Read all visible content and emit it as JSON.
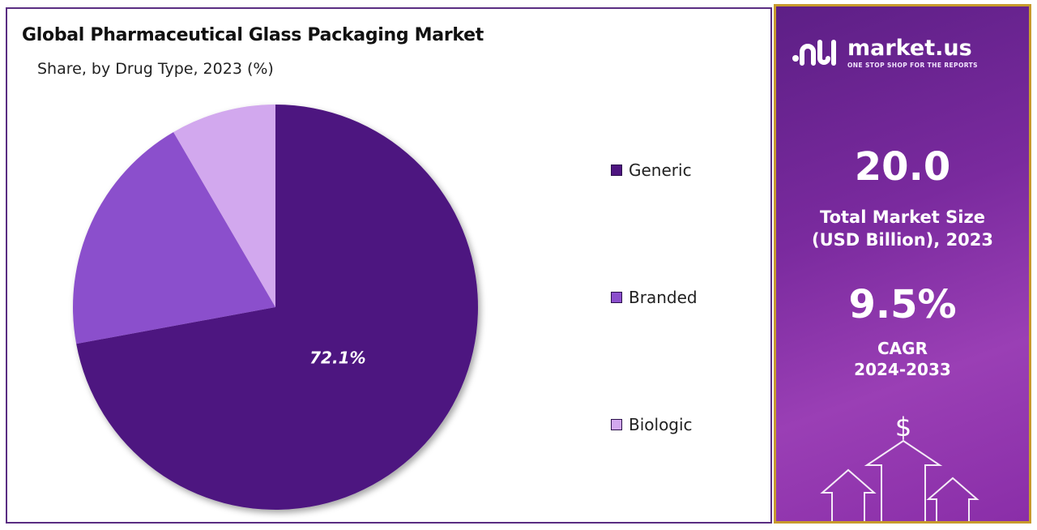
{
  "chart": {
    "title": "Global Pharmaceutical Glass Packaging Market",
    "subtitle": "Share, by Drug Type, 2023 (%)"
  },
  "chart_data": {
    "type": "pie",
    "title": "Global Pharmaceutical Glass Packaging Market",
    "subtitle": "Share, by Drug Type, 2023 (%)",
    "categories": [
      "Generic",
      "Branded",
      "Biologic"
    ],
    "values": [
      72.1,
      19.5,
      8.4
    ],
    "colors": [
      "#4e1580",
      "#8b4fcc",
      "#d2a8ee"
    ],
    "data_labels": [
      "72.1%",
      "",
      ""
    ],
    "legend_position": "right"
  },
  "legend": {
    "items": [
      {
        "label": "Generic",
        "color": "#4e1580"
      },
      {
        "label": "Branded",
        "color": "#8b4fcc"
      },
      {
        "label": "Biologic",
        "color": "#d2a8ee"
      }
    ]
  },
  "side_panel": {
    "logo_name": "market.us",
    "logo_tagline": "ONE STOP SHOP FOR THE REPORTS",
    "market_size_value": "20.0",
    "market_size_label_1": "Total Market Size",
    "market_size_label_2": "(USD Billion), 2023",
    "cagr_value": "9.5%",
    "cagr_label_1": "CAGR",
    "cagr_label_2": "2024-2033",
    "dollar_symbol": "$"
  },
  "colors": {
    "panel_gradient_start": "#5d1f86",
    "panel_gradient_end": "#9a3fb5",
    "panel_border": "#c89a2c",
    "chart_border": "#5a2d82"
  }
}
